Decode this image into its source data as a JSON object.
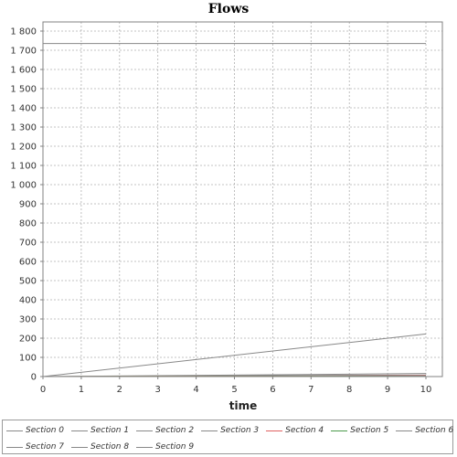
{
  "chart_data": {
    "type": "line",
    "title": "Flows",
    "xlabel": "time",
    "ylabel": "",
    "xlim": [
      0,
      10
    ],
    "ylim": [
      0,
      1800
    ],
    "grid": true,
    "legend_position": "bottom",
    "x_ticks": [
      "0",
      "1",
      "2",
      "3",
      "4",
      "5",
      "6",
      "7",
      "8",
      "9",
      "10"
    ],
    "y_ticks": [
      {
        "value": 0,
        "label": "0"
      },
      {
        "value": 100,
        "label": "100"
      },
      {
        "value": 200,
        "label": "200"
      },
      {
        "value": 300,
        "label": "300"
      },
      {
        "value": 400,
        "label": "400"
      },
      {
        "value": 500,
        "label": "500"
      },
      {
        "value": 600,
        "label": "600"
      },
      {
        "value": 700,
        "label": "700"
      },
      {
        "value": 800,
        "label": "800"
      },
      {
        "value": 900,
        "label": "900"
      },
      {
        "value": 1000,
        "label": "1 000"
      },
      {
        "value": 1100,
        "label": "1 100"
      },
      {
        "value": 1200,
        "label": "1 200"
      },
      {
        "value": 1300,
        "label": "1 300"
      },
      {
        "value": 1400,
        "label": "1 400"
      },
      {
        "value": 1500,
        "label": "1 500"
      },
      {
        "value": 1600,
        "label": "1 600"
      },
      {
        "value": 1700,
        "label": "1 700"
      },
      {
        "value": 1800,
        "label": "1 800"
      }
    ],
    "series": [
      {
        "name": "Section 0",
        "color": "#888888",
        "x": [
          0,
          10
        ],
        "y": [
          1735,
          1735
        ]
      },
      {
        "name": "Section 1",
        "color": "#888888",
        "x": [
          0,
          10
        ],
        "y": [
          0,
          222
        ]
      },
      {
        "name": "Section 2",
        "color": "#888888",
        "x": [
          0,
          10
        ],
        "y": [
          0,
          16
        ]
      },
      {
        "name": "Section 3",
        "color": "#888888",
        "x": [
          0,
          10
        ],
        "y": [
          0,
          8
        ]
      },
      {
        "name": "Section 4",
        "color": "#e06060",
        "x": [
          0,
          10
        ],
        "y": [
          0,
          4
        ]
      },
      {
        "name": "Section 5",
        "color": "#4a9a4a",
        "x": [
          0,
          10
        ],
        "y": [
          0,
          2
        ]
      },
      {
        "name": "Section 6",
        "color": "#888888",
        "x": [
          0,
          10
        ],
        "y": [
          0,
          1
        ]
      },
      {
        "name": "Section 7",
        "color": "#888888",
        "x": [
          0,
          10
        ],
        "y": [
          0,
          0.5
        ]
      },
      {
        "name": "Section 8",
        "color": "#888888",
        "x": [
          0,
          10
        ],
        "y": [
          0,
          0.3
        ]
      },
      {
        "name": "Section 9",
        "color": "#888888",
        "x": [
          0,
          10
        ],
        "y": [
          0,
          0.1
        ]
      }
    ]
  }
}
